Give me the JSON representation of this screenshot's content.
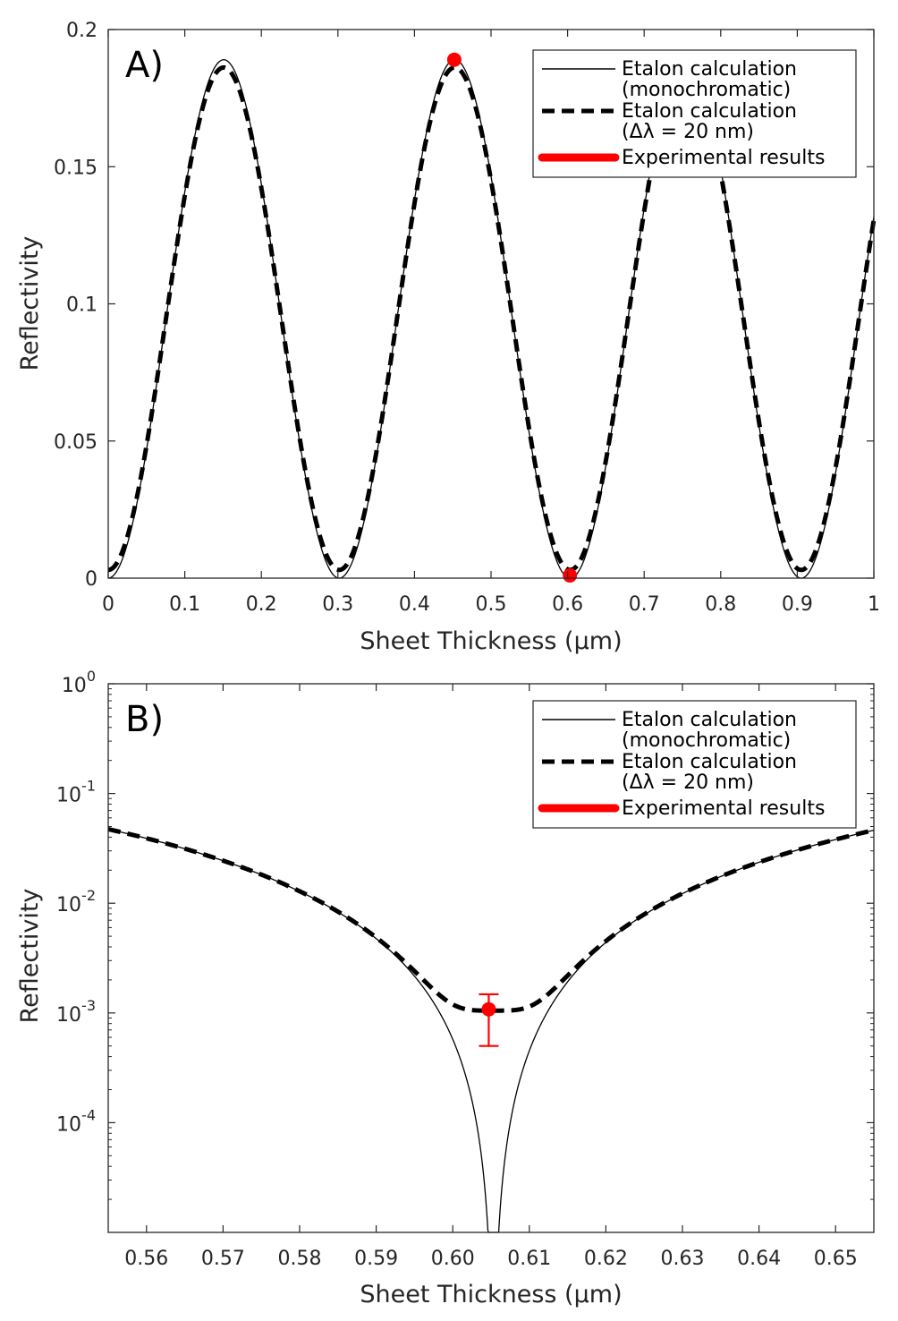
{
  "chart_data": [
    {
      "type": "line",
      "panel_label": "A)",
      "xlabel": "Sheet Thickness (µm)",
      "ylabel": "Reflectivity",
      "xscale": "linear",
      "yscale": "linear",
      "xlim": [
        0,
        1
      ],
      "ylim": [
        0,
        0.2
      ],
      "xticks": [
        0,
        0.1,
        0.2,
        0.3,
        0.4,
        0.5,
        0.6,
        0.7,
        0.8,
        0.9,
        1
      ],
      "xtick_labels": [
        "0",
        "0.1",
        "0.2",
        "0.3",
        "0.4",
        "0.5",
        "0.6",
        "0.7",
        "0.8",
        "0.9",
        "1"
      ],
      "yticks": [
        0,
        0.05,
        0.1,
        0.15,
        0.2
      ],
      "ytick_labels": [
        "0",
        "0.05",
        "0.1",
        "0.15",
        "0.2"
      ],
      "model": {
        "period": 0.3017,
        "peak_reflectivity": 0.189,
        "linewidth_min_reflectivity": 0.003
      },
      "series": [
        {
          "name": "Etalon calculation (monochromatic)",
          "style": "solid",
          "color": "#000000"
        },
        {
          "name": "Etalon calculation (Δλ = 20 nm)",
          "style": "dashed",
          "color": "#000000"
        },
        {
          "name": "Experimental results",
          "style": "markers",
          "color": "#ff0000",
          "points": [
            {
              "x": 0.452,
              "y": 0.189
            },
            {
              "x": 0.603,
              "y": 0.001
            }
          ]
        }
      ],
      "legend": {
        "position": "top-right",
        "entries": [
          {
            "line1": "Etalon calculation",
            "line2": "(monochromatic)"
          },
          {
            "line1": "Etalon calculation",
            "line2": "(Δλ = 20 nm)"
          },
          {
            "line1": "Experimental results",
            "line2": ""
          }
        ]
      }
    },
    {
      "type": "line",
      "panel_label": "B)",
      "xlabel": "Sheet Thickness (µm)",
      "ylabel": "Reflectivity",
      "xscale": "linear",
      "yscale": "log",
      "xlim": [
        0.555,
        0.655
      ],
      "ylim_log10": [
        -5,
        0
      ],
      "xticks": [
        0.56,
        0.57,
        0.58,
        0.59,
        0.6,
        0.61,
        0.62,
        0.63,
        0.64,
        0.65
      ],
      "xtick_labels": [
        "0.56",
        "0.57",
        "0.58",
        "0.59",
        "0.60",
        "0.61",
        "0.62",
        "0.63",
        "0.64",
        "0.65"
      ],
      "yticks": [
        {
          "base": "10",
          "exp": "0"
        },
        {
          "base": "10",
          "exp": "-1"
        },
        {
          "base": "10",
          "exp": "-2"
        },
        {
          "base": "10",
          "exp": "-3"
        },
        {
          "base": "10",
          "exp": "-4"
        }
      ],
      "model": {
        "period": 0.3017,
        "peak_reflectivity": 0.189,
        "minimum_position": 0.6053,
        "linewidth_min_reflectivity": 0.00105
      },
      "series": [
        {
          "name": "Etalon calculation (monochromatic)",
          "style": "solid",
          "color": "#000000"
        },
        {
          "name": "Etalon calculation (Δλ = 20 nm)",
          "style": "dashed",
          "color": "#000000"
        },
        {
          "name": "Experimental results",
          "style": "marker-with-errorbar",
          "color": "#ff0000",
          "points": [
            {
              "x": 0.6047,
              "y": 0.00108,
              "y_low": 0.0005,
              "y_high": 0.00148
            }
          ]
        }
      ],
      "legend": {
        "position": "top-right",
        "entries": [
          {
            "line1": "Etalon calculation",
            "line2": "(monochromatic)"
          },
          {
            "line1": "Etalon calculation",
            "line2": "(Δλ = 20 nm)"
          },
          {
            "line1": "Experimental results",
            "line2": ""
          }
        ]
      }
    }
  ]
}
